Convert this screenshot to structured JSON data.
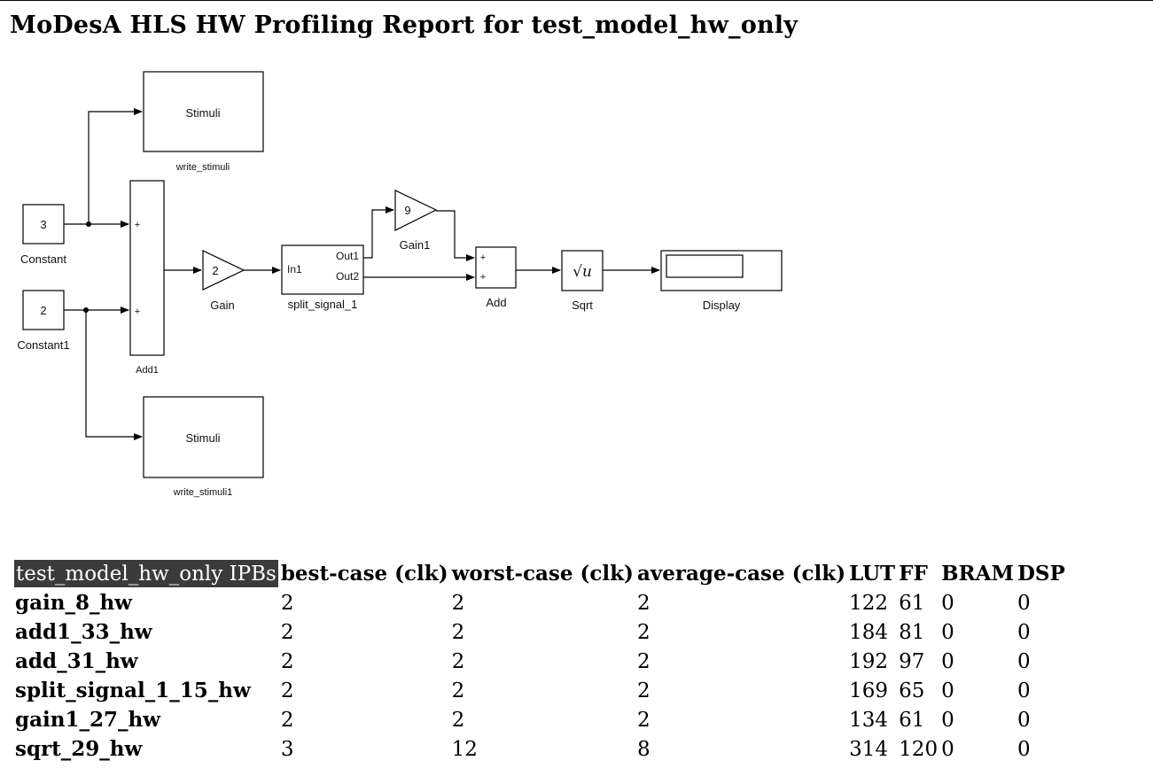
{
  "page": {
    "title": "MoDesA HLS HW Profiling Report for test_model_hw_only"
  },
  "diagram": {
    "blocks": {
      "constant": {
        "value": "3",
        "label": "Constant"
      },
      "constant1": {
        "value": "2",
        "label": "Constant1"
      },
      "add1": {
        "label": "Add1",
        "ports": [
          "+",
          "+"
        ]
      },
      "gain": {
        "value": "2",
        "label": "Gain"
      },
      "split_signal": {
        "in": "In1",
        "out1": "Out1",
        "out2": "Out2",
        "label": "split_signal_1"
      },
      "gain1": {
        "value": "9",
        "label": "Gain1"
      },
      "add": {
        "label": "Add",
        "ports": [
          "+",
          "+"
        ]
      },
      "sqrt": {
        "symbol": "√u",
        "label": "Sqrt"
      },
      "display": {
        "label": "Display"
      },
      "stimuli_top": {
        "text": "Stimuli",
        "label": "write_stimuli"
      },
      "stimuli_bottom": {
        "text": "Stimuli",
        "label": "write_stimuli1"
      }
    }
  },
  "table": {
    "headers": [
      "test_model_hw_only IPBs",
      "best-case (clk)",
      "worst-case (clk)",
      "average-case (clk)",
      "LUT",
      "FF",
      "BRAM",
      "DSP"
    ],
    "rows": [
      [
        "gain_8_hw",
        "2",
        "2",
        "2",
        "122",
        "61",
        "0",
        "0"
      ],
      [
        "add1_33_hw",
        "2",
        "2",
        "2",
        "184",
        "81",
        "0",
        "0"
      ],
      [
        "add_31_hw",
        "2",
        "2",
        "2",
        "192",
        "97",
        "0",
        "0"
      ],
      [
        "split_signal_1_15_hw",
        "2",
        "2",
        "2",
        "169",
        "65",
        "0",
        "0"
      ],
      [
        "gain1_27_hw",
        "2",
        "2",
        "2",
        "134",
        "61",
        "0",
        "0"
      ],
      [
        "sqrt_29_hw",
        "3",
        "12",
        "8",
        "314",
        "120",
        "0",
        "0"
      ]
    ]
  }
}
